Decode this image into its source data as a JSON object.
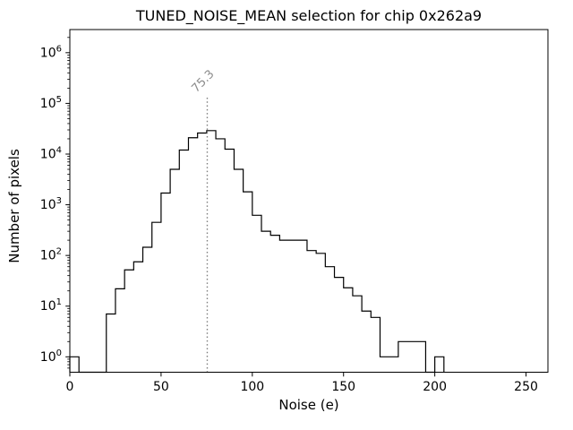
{
  "figure": {
    "background": "#ffffff",
    "frame_color": "#000000"
  },
  "chart_data": {
    "type": "bar",
    "style": "step-outline-histogram",
    "title": "TUNED_NOISE_MEAN selection for chip 0x262a9",
    "xlabel": "Noise (e)",
    "ylabel": "Number of pixels",
    "yscale": "log",
    "grid": false,
    "legend": null,
    "xlim": [
      0,
      262
    ],
    "ylim": [
      0.497,
      2860000
    ],
    "x_ticks": [
      0,
      50,
      100,
      150,
      200,
      250
    ],
    "x_tick_labels": [
      "0",
      "50",
      "100",
      "150",
      "200",
      "250"
    ],
    "y_ticks": [
      {
        "base": "10",
        "exp": "0",
        "value": 1
      },
      {
        "base": "10",
        "exp": "1",
        "value": 10
      },
      {
        "base": "10",
        "exp": "2",
        "value": 100
      },
      {
        "base": "10",
        "exp": "3",
        "value": 1000
      },
      {
        "base": "10",
        "exp": "4",
        "value": 10000
      },
      {
        "base": "10",
        "exp": "5",
        "value": 100000
      },
      {
        "base": "10",
        "exp": "6",
        "value": 1000000
      }
    ],
    "line_color": "#000000",
    "bin_edges": [
      0,
      5,
      10,
      15,
      20,
      25,
      30,
      35,
      40,
      45,
      50,
      55,
      60,
      65,
      70,
      75,
      80,
      85,
      90,
      95,
      100,
      105,
      110,
      115,
      120,
      125,
      130,
      135,
      140,
      145,
      150,
      155,
      160,
      165,
      170,
      175,
      180,
      185,
      190,
      195,
      200,
      205
    ],
    "counts": [
      1,
      0,
      0,
      0,
      7,
      22,
      52,
      75,
      145,
      450,
      1700,
      5000,
      12000,
      21000,
      26000,
      29000,
      20000,
      12500,
      5000,
      1800,
      620,
      300,
      250,
      200,
      200,
      200,
      125,
      110,
      60,
      37,
      23,
      16,
      8,
      6,
      1,
      1,
      2,
      2,
      2,
      0,
      1
    ],
    "annotation": {
      "label": "75.3",
      "x": 75.3,
      "line_top_value": 130000,
      "line_color": "#7f7f7f",
      "text_color": "#8c8c8c",
      "line_style": "dotted"
    }
  }
}
